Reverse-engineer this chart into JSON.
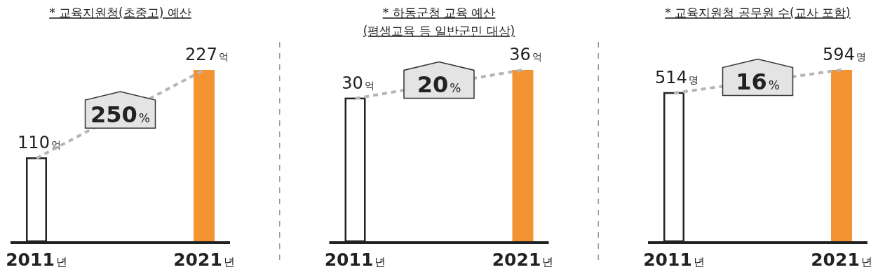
{
  "chart_data": [
    {
      "type": "bar",
      "title": "* 교육지원청(초중고) 예산",
      "categories": [
        "2011년",
        "2021년"
      ],
      "series": [
        {
          "type": "bar",
          "colors": [
            "#ffffff",
            "#f39331"
          ],
          "values": [
            110,
            227
          ],
          "value_labels": [
            "110억",
            "227억"
          ]
        },
        {
          "type": "line",
          "color": "#b5b5b5",
          "values": [
            110,
            227
          ],
          "line_style": "dashed",
          "marker": "none"
        }
      ],
      "annotations": [
        "250%"
      ]
    },
    {
      "type": "bar",
      "title": "* 하동군청 교육 예산",
      "subtitle": "(평생교육 등 일반군민 대상)",
      "categories": [
        "2011년",
        "2021년"
      ],
      "series": [
        {
          "type": "bar",
          "colors": [
            "#ffffff",
            "#f39331"
          ],
          "values": [
            30,
            36
          ],
          "value_labels": [
            "30억",
            "36억"
          ]
        },
        {
          "type": "line",
          "color": "#b5b5b5",
          "values": [
            30,
            36
          ],
          "line_style": "dashed",
          "marker": "none"
        }
      ],
      "annotations": [
        "20%"
      ]
    },
    {
      "type": "bar",
      "title": "* 교육지원청 공무원 수(교사 포함)",
      "categories": [
        "2011년",
        "2021년"
      ],
      "series": [
        {
          "type": "bar",
          "colors": [
            "#ffffff",
            "#f39331"
          ],
          "values": [
            514,
            594
          ],
          "value_labels": [
            "514명",
            "594명"
          ]
        },
        {
          "type": "line",
          "color": "#b5b5b5",
          "values": [
            514,
            594
          ],
          "line_style": "dashed",
          "marker": "none"
        }
      ],
      "annotations": [
        "16%"
      ]
    }
  ]
}
